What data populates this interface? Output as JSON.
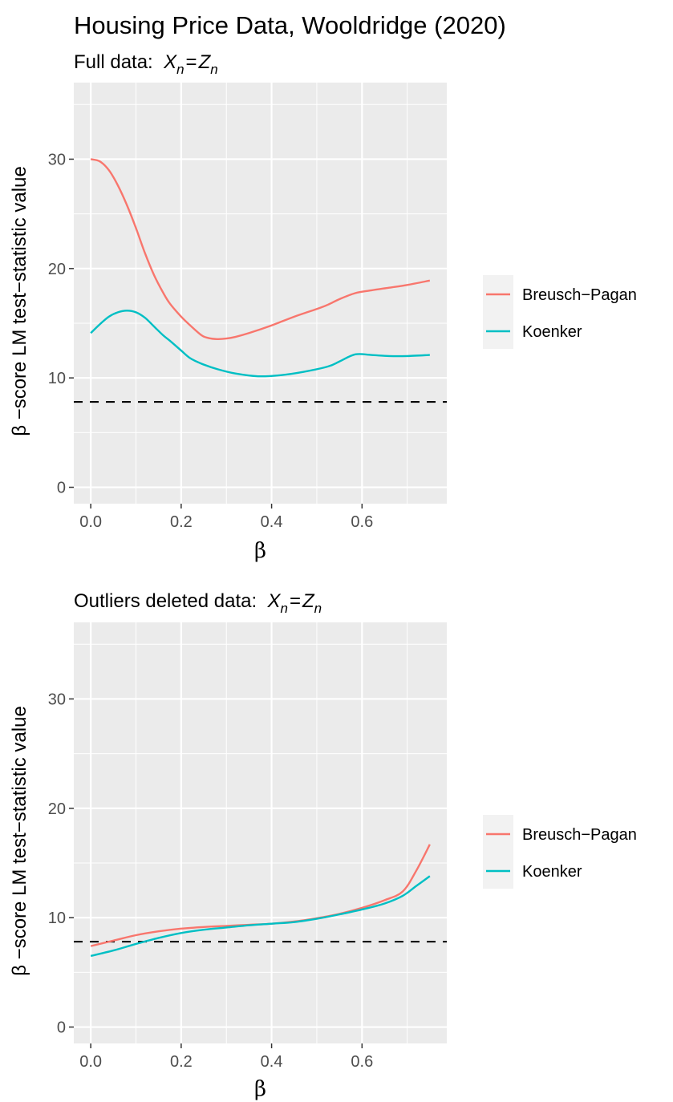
{
  "figure_title": "Housing Price Data, Wooldridge (2020)",
  "colors": {
    "breusch_pagan": "#F8766D",
    "koenker": "#00BFC4",
    "panel_bg": "#EBEBEB",
    "grid": "#FFFFFF",
    "reference_line": "#000000"
  },
  "chart_data": [
    {
      "type": "line",
      "title": "",
      "subtitle": {
        "prefix": "Full data:",
        "lhs_var": "X",
        "lhs_sub": "n",
        "eq": "=",
        "rhs_var": "Z",
        "rhs_sub": "n"
      },
      "xlabel": "β",
      "ylabel": "β −score LM test−statistic value",
      "xlim": [
        -0.0375,
        0.7875
      ],
      "ylim": [
        -1.5,
        37
      ],
      "xticks": [
        0.0,
        0.2,
        0.4,
        0.6
      ],
      "xtick_labels": [
        "0.0",
        "0.2",
        "0.4",
        "0.6"
      ],
      "yticks": [
        0,
        10,
        20,
        30
      ],
      "ytick_labels": [
        "0",
        "10",
        "20",
        "30"
      ],
      "grid": true,
      "legend_position": "right",
      "reference_line": {
        "y": 7.81,
        "style": "dashed"
      },
      "series": [
        {
          "name": "Breusch−Pagan",
          "x": [
            0.0,
            0.02,
            0.04,
            0.06,
            0.08,
            0.1,
            0.12,
            0.14,
            0.16,
            0.175,
            0.2,
            0.22,
            0.245,
            0.26,
            0.28,
            0.3,
            0.32,
            0.35,
            0.4,
            0.45,
            0.5,
            0.525,
            0.55,
            0.585,
            0.62,
            0.66,
            0.7,
            0.75
          ],
          "y": [
            30.0,
            29.8,
            29.0,
            27.6,
            25.8,
            23.7,
            21.4,
            19.4,
            17.8,
            16.8,
            15.6,
            14.8,
            13.9,
            13.65,
            13.55,
            13.6,
            13.75,
            14.1,
            14.8,
            15.6,
            16.3,
            16.7,
            17.2,
            17.75,
            18.0,
            18.25,
            18.5,
            18.9
          ]
        },
        {
          "name": "Koenker",
          "x": [
            0.0,
            0.02,
            0.04,
            0.06,
            0.08,
            0.1,
            0.12,
            0.14,
            0.16,
            0.175,
            0.2,
            0.22,
            0.245,
            0.28,
            0.32,
            0.37,
            0.42,
            0.47,
            0.525,
            0.55,
            0.585,
            0.62,
            0.66,
            0.7,
            0.75
          ],
          "y": [
            14.1,
            14.9,
            15.6,
            16.0,
            16.15,
            16.0,
            15.5,
            14.7,
            13.9,
            13.4,
            12.5,
            11.8,
            11.3,
            10.8,
            10.4,
            10.15,
            10.25,
            10.55,
            11.05,
            11.5,
            12.15,
            12.1,
            12.0,
            12.0,
            12.1
          ]
        }
      ]
    },
    {
      "type": "line",
      "title": "",
      "subtitle": {
        "prefix": "Outliers deleted data:",
        "lhs_var": "X",
        "lhs_sub": "n",
        "eq": "=",
        "rhs_var": "Z",
        "rhs_sub": "n"
      },
      "xlabel": "β",
      "ylabel": "β −score LM test−statistic value",
      "xlim": [
        -0.0375,
        0.7875
      ],
      "ylim": [
        -1.5,
        37
      ],
      "xticks": [
        0.0,
        0.2,
        0.4,
        0.6
      ],
      "xtick_labels": [
        "0.0",
        "0.2",
        "0.4",
        "0.6"
      ],
      "yticks": [
        0,
        10,
        20,
        30
      ],
      "ytick_labels": [
        "0",
        "10",
        "20",
        "30"
      ],
      "grid": true,
      "legend_position": "right",
      "reference_line": {
        "y": 7.81,
        "style": "dashed"
      },
      "series": [
        {
          "name": "Breusch−Pagan",
          "x": [
            0.0,
            0.05,
            0.1,
            0.15,
            0.2,
            0.25,
            0.3,
            0.35,
            0.4,
            0.45,
            0.5,
            0.55,
            0.6,
            0.65,
            0.69,
            0.72,
            0.75
          ],
          "y": [
            7.4,
            7.9,
            8.4,
            8.75,
            9.0,
            9.15,
            9.25,
            9.35,
            9.45,
            9.65,
            9.95,
            10.35,
            10.9,
            11.6,
            12.4,
            14.3,
            16.7
          ]
        },
        {
          "name": "Koenker",
          "x": [
            0.0,
            0.05,
            0.1,
            0.15,
            0.2,
            0.25,
            0.3,
            0.35,
            0.4,
            0.45,
            0.5,
            0.55,
            0.6,
            0.65,
            0.69,
            0.72,
            0.75
          ],
          "y": [
            6.5,
            7.0,
            7.6,
            8.15,
            8.6,
            8.9,
            9.1,
            9.3,
            9.45,
            9.6,
            9.9,
            10.3,
            10.75,
            11.3,
            12.0,
            12.9,
            13.8
          ]
        }
      ]
    }
  ]
}
